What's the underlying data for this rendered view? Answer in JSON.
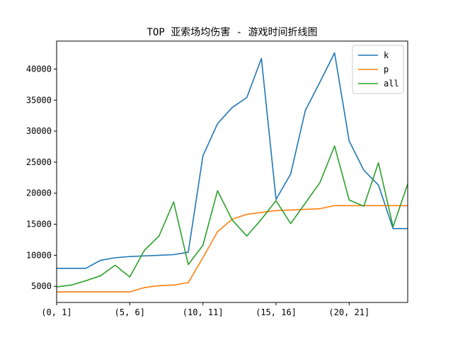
{
  "chart_data": {
    "type": "line",
    "title": "TOP 亚索场均伤害 - 游戏时间折线图",
    "xlabel": "",
    "ylabel": "",
    "x": [
      0,
      1,
      2,
      3,
      4,
      5,
      6,
      7,
      8,
      9,
      10,
      11,
      12,
      13,
      14,
      15,
      16,
      17,
      18,
      19,
      20,
      21,
      22,
      23,
      24
    ],
    "xlim": [
      0,
      24
    ],
    "ylim": [
      2400,
      44500
    ],
    "x_ticks": [
      {
        "x": 0,
        "label": "(0, 1]"
      },
      {
        "x": 5,
        "label": "(5, 6]"
      },
      {
        "x": 10,
        "label": "(10, 11]"
      },
      {
        "x": 15,
        "label": "(15, 16]"
      },
      {
        "x": 20,
        "label": "(20, 21]"
      }
    ],
    "y_ticks": [
      {
        "y": 5000,
        "label": "5000"
      },
      {
        "y": 10000,
        "label": "10000"
      },
      {
        "y": 15000,
        "label": "15000"
      },
      {
        "y": 20000,
        "label": "20000"
      },
      {
        "y": 25000,
        "label": "25000"
      },
      {
        "y": 30000,
        "label": "30000"
      },
      {
        "y": 35000,
        "label": "35000"
      },
      {
        "y": 40000,
        "label": "40000"
      }
    ],
    "grid": false,
    "legend_position": "top-right",
    "series": [
      {
        "name": "k",
        "color": "#1f77b4",
        "values": [
          7900,
          7900,
          7900,
          9200,
          9600,
          9800,
          9900,
          10000,
          10100,
          10500,
          26000,
          31200,
          33800,
          35400,
          41700,
          19000,
          23100,
          33300,
          37900,
          42600,
          28400,
          23700,
          21300,
          14300,
          14300
        ]
      },
      {
        "name": "p",
        "color": "#ff7f0e",
        "values": [
          4100,
          4100,
          4100,
          4100,
          4100,
          4100,
          4800,
          5100,
          5200,
          5600,
          9600,
          13800,
          15800,
          16600,
          16900,
          17200,
          17300,
          17400,
          17500,
          18000,
          18000,
          18000,
          18000,
          18000,
          18000
        ]
      },
      {
        "name": "all",
        "color": "#2ca02c",
        "values": [
          4900,
          5200,
          5900,
          6700,
          8400,
          6500,
          10800,
          13100,
          18600,
          8500,
          11600,
          20400,
          15700,
          13100,
          15800,
          18800,
          15100,
          18400,
          21700,
          27600,
          18900,
          17900,
          24900,
          14600,
          21500
        ]
      }
    ]
  }
}
